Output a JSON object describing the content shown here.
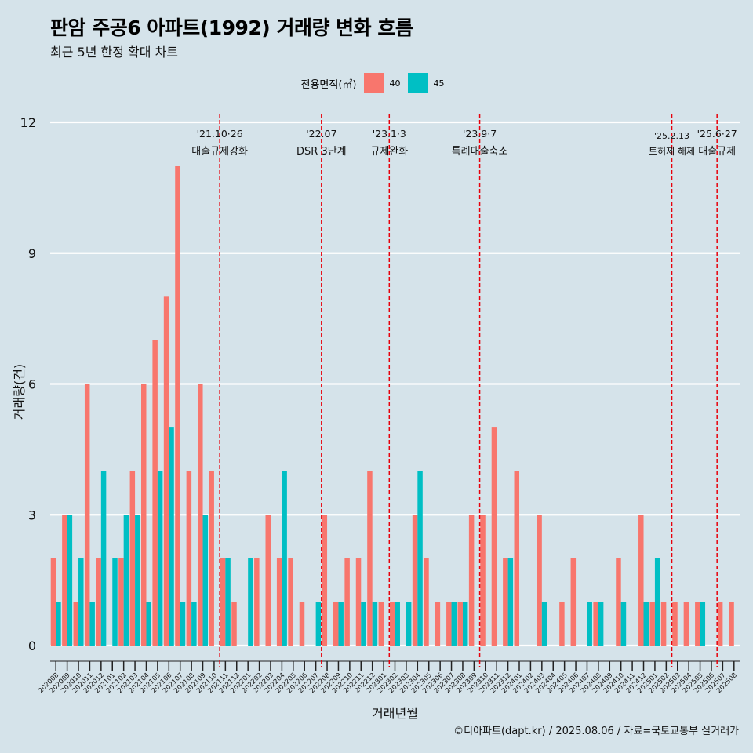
{
  "chart_data": {
    "type": "bar",
    "title": "판암 주공6 아파트(1992) 거래량 변화 흐름",
    "subtitle": "최근 5년 한정 확대 차트",
    "xlabel": "거래년월",
    "ylabel": "거래량(건)",
    "ylim": [
      0,
      12
    ],
    "yticks": [
      0,
      3,
      6,
      9,
      12
    ],
    "legend": {
      "title": "전용면적(㎡)",
      "position": "top",
      "items": [
        {
          "label": "40",
          "color": "#f8766d"
        },
        {
          "label": "45",
          "color": "#00bfc4"
        }
      ]
    },
    "categories": [
      "202008",
      "202009",
      "202010",
      "202011",
      "202012",
      "202101",
      "202102",
      "202103",
      "202104",
      "202105",
      "202106",
      "202107",
      "202108",
      "202109",
      "202110",
      "202111",
      "202112",
      "202201",
      "202202",
      "202203",
      "202204",
      "202205",
      "202206",
      "202207",
      "202208",
      "202209",
      "202210",
      "202211",
      "202212",
      "202301",
      "202302",
      "202303",
      "202304",
      "202305",
      "202306",
      "202307",
      "202308",
      "202309",
      "202310",
      "202311",
      "202312",
      "202401",
      "202402",
      "202403",
      "202404",
      "202405",
      "202406",
      "202407",
      "202408",
      "202409",
      "202410",
      "202411",
      "202412",
      "202501",
      "202502",
      "202503",
      "202504",
      "202505",
      "202506",
      "202507",
      "202508"
    ],
    "series": [
      {
        "name": "40",
        "color": "#f8766d",
        "values": [
          2,
          3,
          1,
          6,
          2,
          0,
          2,
          4,
          6,
          7,
          8,
          11,
          4,
          6,
          4,
          2,
          1,
          0,
          2,
          3,
          2,
          2,
          1,
          0,
          3,
          1,
          2,
          2,
          4,
          1,
          1,
          0,
          3,
          2,
          1,
          1,
          1,
          3,
          3,
          5,
          2,
          4,
          0,
          3,
          0,
          1,
          2,
          0,
          1,
          0,
          2,
          0,
          3,
          1,
          1,
          1,
          1,
          1,
          0,
          1,
          1
        ]
      },
      {
        "name": "45",
        "color": "#00bfc4",
        "values": [
          1,
          3,
          2,
          1,
          4,
          2,
          3,
          3,
          1,
          4,
          5,
          1,
          1,
          3,
          0,
          2,
          0,
          2,
          0,
          0,
          4,
          0,
          0,
          1,
          0,
          1,
          0,
          1,
          1,
          0,
          1,
          1,
          4,
          0,
          0,
          1,
          1,
          0,
          0,
          0,
          2,
          0,
          0,
          1,
          0,
          0,
          0,
          1,
          1,
          0,
          1,
          0,
          1,
          2,
          0,
          0,
          0,
          1,
          0,
          0,
          0
        ]
      }
    ],
    "events": [
      {
        "after": "202110",
        "date": "'21.10·26",
        "label": "대출규제강화"
      },
      {
        "after": "202207",
        "date": "'22.07",
        "label": "DSR 3단계"
      },
      {
        "after": "202301",
        "date": "'23.1·3",
        "label": "규제완화"
      },
      {
        "after": "202309",
        "date": "'23.9·7",
        "label": "특례대출축소"
      },
      {
        "after": "202502",
        "date": "'25.2.13",
        "label": "토허제 해제"
      },
      {
        "after": "202506",
        "date": "'25.6·27",
        "label": "대출규제"
      }
    ],
    "credit": "©디아파트(dapt.kr) / 2025.08.06 / 자료=국토교통부 실거래가"
  }
}
